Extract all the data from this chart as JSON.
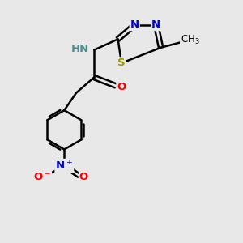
{
  "bg_color": "#e8e8e8",
  "bond_color": "#000000",
  "lw": 1.8,
  "atom_colors": {
    "N": "#0000cc",
    "O": "#ff0000",
    "S": "#999900",
    "H": "#4a9090",
    "C": "#000000"
  },
  "figsize": [
    3.0,
    3.0
  ],
  "dpi": 100,
  "xlim": [
    0,
    10
  ],
  "ylim": [
    0,
    10
  ]
}
